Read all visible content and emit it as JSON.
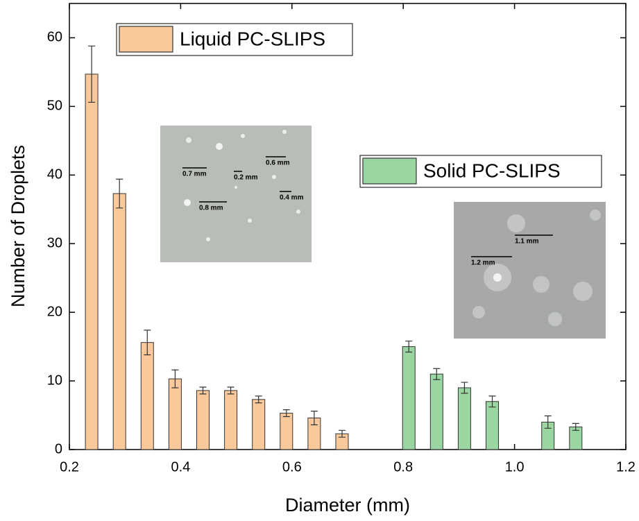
{
  "chart_data": {
    "type": "bar",
    "xlabel": "Diameter (mm)",
    "ylabel": "Number of Droplets",
    "xlim": [
      0.2,
      1.2
    ],
    "ylim": [
      0,
      65
    ],
    "xticks": [
      0.2,
      0.4,
      0.6,
      0.8,
      {
        "value": 1.0,
        "label": "1.0"
      },
      1.2
    ],
    "yticks": [
      0,
      10,
      20,
      30,
      40,
      50,
      60
    ],
    "series": [
      {
        "name": "Liquid PC-SLIPS",
        "color": "#f9c89b",
        "x": [
          0.24,
          0.29,
          0.34,
          0.39,
          0.44,
          0.49,
          0.54,
          0.59,
          0.64,
          0.69
        ],
        "values": [
          54.7,
          37.3,
          15.6,
          10.3,
          8.6,
          8.6,
          7.3,
          5.3,
          4.6,
          2.3
        ],
        "errors": [
          4.1,
          2.1,
          1.8,
          1.3,
          0.5,
          0.5,
          0.5,
          0.5,
          1.0,
          0.5
        ]
      },
      {
        "name": "Solid PC-SLIPS",
        "color": "#9ad6a0",
        "x": [
          0.81,
          0.86,
          0.91,
          0.96,
          1.06,
          1.11
        ],
        "values": [
          15,
          11,
          9,
          7,
          4,
          3.3
        ],
        "errors": [
          0.8,
          0.8,
          0.8,
          0.8,
          0.9,
          0.5
        ]
      }
    ],
    "insets": [
      {
        "labels": [
          "0.7 mm",
          "0.2 mm",
          "0.6 mm",
          "0.8 mm",
          "0.4 mm"
        ]
      },
      {
        "labels": [
          "1.1 mm",
          "1.2 mm"
        ]
      }
    ]
  }
}
